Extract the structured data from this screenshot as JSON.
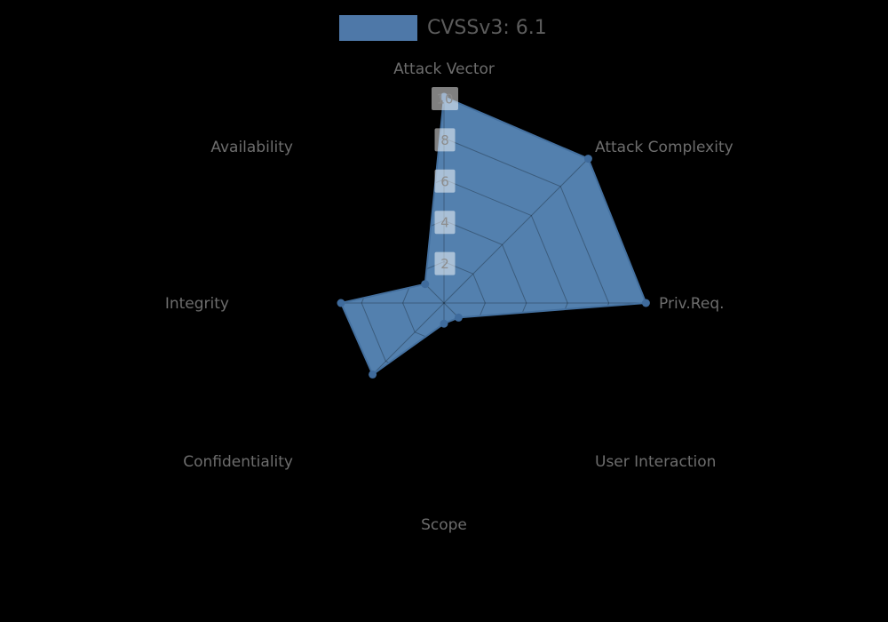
{
  "page": {
    "background_color": "#000000"
  },
  "legend": {
    "swatch_color": "#4e78a8",
    "label": "CVSSv3: 6.1"
  },
  "chart_data": {
    "type": "radar",
    "title": "CVSSv3: 6.1",
    "categories": [
      "Attack Vector",
      "Attack Complexity",
      "Priv.Req.",
      "User Interaction",
      "Scope",
      "Confidentiality",
      "Integrity",
      "Availability"
    ],
    "series": [
      {
        "name": "CVSSv3: 6.1",
        "values": [
          10,
          9.9,
          9.8,
          1.0,
          1.0,
          4.9,
          5.0,
          1.3
        ]
      }
    ],
    "radial_ticks": [
      2,
      4,
      6,
      8,
      10
    ],
    "axis_range": [
      0,
      10
    ],
    "start_axis": "top",
    "direction": "clockwise",
    "grid": true,
    "grid_shape": "polygon",
    "legend_position": "top-center",
    "colors": {
      "fill": "#5380ae",
      "stroke": "#44709f",
      "marker": "#3f6b9c",
      "grid_line": "rgba(0,0,0,0.28)",
      "axis_label": "#6d6d6d",
      "tick_text": "#8d8d8d",
      "tick_box_bg": "rgba(255,255,255,0.5)"
    }
  }
}
